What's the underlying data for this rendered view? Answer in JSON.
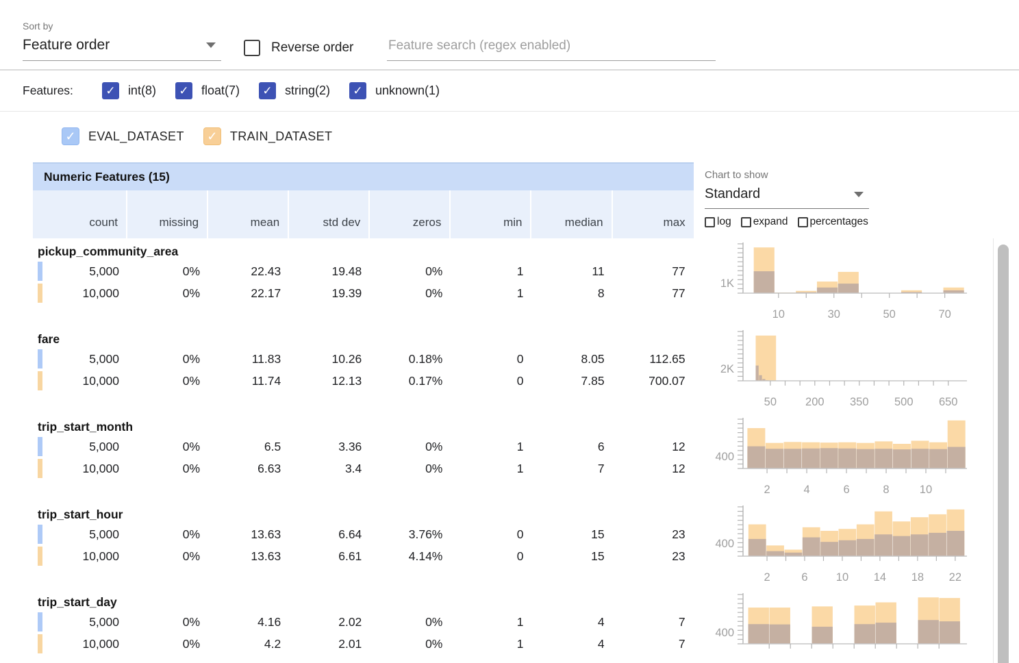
{
  "topbar": {
    "sort_by_label": "Sort by",
    "sort_by_value": "Feature order",
    "reverse_order_label": "Reverse order",
    "search_placeholder": "Feature search (regex enabled)"
  },
  "features_bar": {
    "label": "Features:",
    "types": [
      {
        "label": "int(8)",
        "checked": true
      },
      {
        "label": "float(7)",
        "checked": true
      },
      {
        "label": "string(2)",
        "checked": true
      },
      {
        "label": "unknown(1)",
        "checked": true
      }
    ]
  },
  "dataset_legend": [
    {
      "name": "EVAL_DATASET",
      "checked": true,
      "color": "#a9c8f6"
    },
    {
      "name": "TRAIN_DATASET",
      "checked": true,
      "color": "#f8cf97"
    }
  ],
  "chart_panel": {
    "label": "Chart to show",
    "selected": "Standard",
    "toggles": [
      "log",
      "expand",
      "percentages"
    ]
  },
  "table": {
    "title": "Numeric Features (15)",
    "columns": [
      "count",
      "missing",
      "mean",
      "std dev",
      "zeros",
      "min",
      "median",
      "max"
    ],
    "features": [
      {
        "name": "pickup_community_area",
        "rows": [
          {
            "dataset": "eval",
            "values": [
              "5,000",
              "0%",
              "22.43",
              "19.48",
              "0%",
              "1",
              "11",
              "77"
            ]
          },
          {
            "dataset": "train",
            "values": [
              "10,000",
              "0%",
              "22.17",
              "19.39",
              "0%",
              "1",
              "8",
              "77"
            ]
          }
        ]
      },
      {
        "name": "fare",
        "rows": [
          {
            "dataset": "eval",
            "values": [
              "5,000",
              "0%",
              "11.83",
              "10.26",
              "0.18%",
              "0",
              "8.05",
              "112.65"
            ]
          },
          {
            "dataset": "train",
            "values": [
              "10,000",
              "0%",
              "11.74",
              "12.13",
              "0.17%",
              "0",
              "7.85",
              "700.07"
            ]
          }
        ]
      },
      {
        "name": "trip_start_month",
        "rows": [
          {
            "dataset": "eval",
            "values": [
              "5,000",
              "0%",
              "6.5",
              "3.36",
              "0%",
              "1",
              "6",
              "12"
            ]
          },
          {
            "dataset": "train",
            "values": [
              "10,000",
              "0%",
              "6.63",
              "3.4",
              "0%",
              "1",
              "7",
              "12"
            ]
          }
        ]
      },
      {
        "name": "trip_start_hour",
        "rows": [
          {
            "dataset": "eval",
            "values": [
              "5,000",
              "0%",
              "13.63",
              "6.64",
              "3.76%",
              "0",
              "15",
              "23"
            ]
          },
          {
            "dataset": "train",
            "values": [
              "10,000",
              "0%",
              "13.63",
              "6.61",
              "4.14%",
              "0",
              "15",
              "23"
            ]
          }
        ]
      },
      {
        "name": "trip_start_day",
        "rows": [
          {
            "dataset": "eval",
            "values": [
              "5,000",
              "0%",
              "4.16",
              "2.02",
              "0%",
              "1",
              "4",
              "7"
            ]
          },
          {
            "dataset": "train",
            "values": [
              "10,000",
              "0%",
              "4.2",
              "2.01",
              "0%",
              "1",
              "4",
              "7"
            ]
          }
        ]
      }
    ]
  },
  "colors": {
    "train_bar": "#fbd9a6",
    "overlap_bar": "#c5b0a2",
    "eval_bar": "#afc8f0",
    "axis": "#b3b3b3",
    "baseline": "#c6c6c6",
    "tick_text": "#9e9e9e"
  },
  "chart_data": [
    {
      "feature": "pickup_community_area",
      "type": "bar",
      "ylabel": {
        "text": "1K",
        "value": 1000
      },
      "ymax": 4800,
      "xdomain": [
        -2.8,
        78
      ],
      "ticks": [
        {
          "v": 10,
          "label": "10"
        },
        {
          "v": 20
        },
        {
          "v": 30,
          "label": "30"
        },
        {
          "v": 40
        },
        {
          "v": 50,
          "label": "50"
        },
        {
          "v": 60
        },
        {
          "v": 70,
          "label": "70"
        }
      ],
      "series": {
        "train": {
          "name": "TRAIN_DATASET",
          "edges": [
            1,
            8.6,
            16.2,
            23.8,
            31.4,
            39,
            46.6,
            54.2,
            61.8,
            69.4,
            77
          ],
          "counts": [
            4450,
            60,
            220,
            1130,
            2070,
            40,
            40,
            280,
            40,
            550
          ]
        },
        "eval": {
          "name": "EVAL_DATASET",
          "edges": [
            1,
            8.6,
            16.2,
            23.8,
            31.4,
            39,
            46.6,
            54.2,
            61.8,
            69.4,
            77
          ],
          "counts": [
            2130,
            40,
            90,
            550,
            930,
            20,
            20,
            110,
            20,
            270
          ]
        }
      }
    },
    {
      "feature": "fare",
      "type": "bar",
      "ylabel": {
        "text": "2K",
        "value": 2000
      },
      "ymax": 7900,
      "xdomain": [
        -42,
        713
      ],
      "ticks": [
        {
          "v": 50,
          "label": "50"
        },
        {
          "v": 100
        },
        {
          "v": 150
        },
        {
          "v": 200,
          "label": "200"
        },
        {
          "v": 250
        },
        {
          "v": 300
        },
        {
          "v": 350,
          "label": "350"
        },
        {
          "v": 400
        },
        {
          "v": 450
        },
        {
          "v": 500,
          "label": "500"
        },
        {
          "v": 550
        },
        {
          "v": 600
        },
        {
          "v": 650,
          "label": "650"
        }
      ],
      "series": {
        "train": {
          "name": "TRAIN_DATASET",
          "edges": [
            0,
            70,
            140,
            210,
            280,
            350,
            420,
            490,
            560,
            630,
            700
          ],
          "counts": [
            7250,
            40,
            12,
            6,
            4,
            3,
            2,
            2,
            1,
            1
          ]
        },
        "eval": {
          "name": "EVAL_DATASET",
          "edges": [
            0,
            11.3,
            22.5,
            33.8,
            45.1,
            56.3,
            67.6,
            78.9,
            90.1,
            101.4,
            112.7
          ],
          "counts": [
            2450,
            900,
            280,
            90,
            40,
            15,
            8,
            4,
            2,
            1
          ]
        }
      }
    },
    {
      "feature": "trip_start_month",
      "type": "bar",
      "ylabel": {
        "text": "400",
        "value": 400
      },
      "ymax": 1600,
      "xdomain": [
        0.79,
        12.07
      ],
      "ticks": [
        {
          "v": 2,
          "label": "2"
        },
        {
          "v": 3
        },
        {
          "v": 4,
          "label": "4"
        },
        {
          "v": 5
        },
        {
          "v": 6,
          "label": "6"
        },
        {
          "v": 7
        },
        {
          "v": 8,
          "label": "8"
        },
        {
          "v": 9
        },
        {
          "v": 10,
          "label": "10"
        },
        {
          "v": 11
        }
      ],
      "series": {
        "train": {
          "name": "TRAIN_DATASET",
          "edges": [
            1,
            1.917,
            2.833,
            3.75,
            4.667,
            5.583,
            6.5,
            7.417,
            8.333,
            9.25,
            10.167,
            11.083,
            12
          ],
          "counts": [
            1310,
            830,
            860,
            850,
            840,
            850,
            830,
            880,
            800,
            900,
            850,
            1560
          ]
        },
        "eval": {
          "name": "EVAL_DATASET",
          "edges": [
            1,
            1.917,
            2.833,
            3.75,
            4.667,
            5.583,
            6.5,
            7.417,
            8.333,
            9.25,
            10.167,
            11.083,
            12
          ],
          "counts": [
            720,
            640,
            640,
            650,
            660,
            650,
            630,
            640,
            620,
            640,
            630,
            700
          ]
        }
      }
    },
    {
      "feature": "trip_start_hour",
      "type": "bar",
      "ylabel": {
        "text": "400",
        "value": 400
      },
      "ymax": 1520,
      "xdomain": [
        -0.55,
        23.25
      ],
      "ticks": [
        {
          "v": 2,
          "label": "2"
        },
        {
          "v": 4
        },
        {
          "v": 6,
          "label": "6"
        },
        {
          "v": 8
        },
        {
          "v": 10,
          "label": "10"
        },
        {
          "v": 12
        },
        {
          "v": 14,
          "label": "14"
        },
        {
          "v": 16
        },
        {
          "v": 18,
          "label": "18"
        },
        {
          "v": 20
        },
        {
          "v": 22,
          "label": "22"
        }
      ],
      "series": {
        "train": {
          "name": "TRAIN_DATASET",
          "edges": [
            0,
            1.917,
            3.833,
            5.75,
            7.667,
            9.583,
            11.5,
            13.417,
            15.333,
            17.25,
            19.167,
            21.083,
            23
          ],
          "counts": [
            980,
            330,
            200,
            890,
            780,
            840,
            980,
            1380,
            1070,
            1200,
            1290,
            1440
          ]
        },
        "eval": {
          "name": "EVAL_DATASET",
          "edges": [
            0,
            1.917,
            3.833,
            5.75,
            7.667,
            9.583,
            11.5,
            13.417,
            15.333,
            17.25,
            19.167,
            21.083,
            23
          ],
          "counts": [
            530,
            155,
            110,
            580,
            440,
            490,
            530,
            670,
            620,
            670,
            720,
            780
          ]
        }
      }
    },
    {
      "feature": "trip_start_day",
      "type": "bar",
      "ylabel": {
        "text": "400",
        "value": 400
      },
      "ymax": 1700,
      "xdomain": [
        0.86,
        7.19
      ],
      "ticks": [
        {
          "v": 1.6
        },
        {
          "v": 2.2
        },
        {
          "v": 2.8
        },
        {
          "v": 3.4
        },
        {
          "v": 4
        },
        {
          "v": 4.6
        },
        {
          "v": 5.2
        },
        {
          "v": 5.8
        },
        {
          "v": 6.4
        }
      ],
      "series": {
        "train": {
          "name": "TRAIN_DATASET",
          "edges": [
            1,
            1.6,
            2.2,
            2.8,
            3.4,
            4,
            4.6,
            5.2,
            5.8,
            6.4,
            7
          ],
          "counts": [
            1250,
            1250,
            0,
            1290,
            0,
            1320,
            1430,
            0,
            1600,
            1580
          ]
        },
        "eval": {
          "name": "EVAL_DATASET",
          "edges": [
            1,
            1.6,
            2.2,
            2.8,
            3.4,
            4,
            4.6,
            5.2,
            5.8,
            6.4,
            7
          ],
          "counts": [
            680,
            670,
            0,
            590,
            0,
            680,
            730,
            0,
            820,
            775
          ]
        }
      }
    }
  ]
}
